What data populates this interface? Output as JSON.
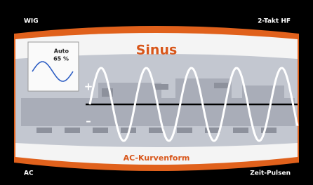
{
  "corners": {
    "top_left": "WIG",
    "top_right": "2-Takt HF",
    "bottom_left": "AC",
    "bottom_right": "Zeit-Pulsen"
  },
  "inset": {
    "mode": "Auto",
    "value": "65 %"
  },
  "title": "Sinus",
  "polarity": {
    "positive": "+",
    "negative": "–"
  },
  "footer": "AC-Kurvenform"
}
